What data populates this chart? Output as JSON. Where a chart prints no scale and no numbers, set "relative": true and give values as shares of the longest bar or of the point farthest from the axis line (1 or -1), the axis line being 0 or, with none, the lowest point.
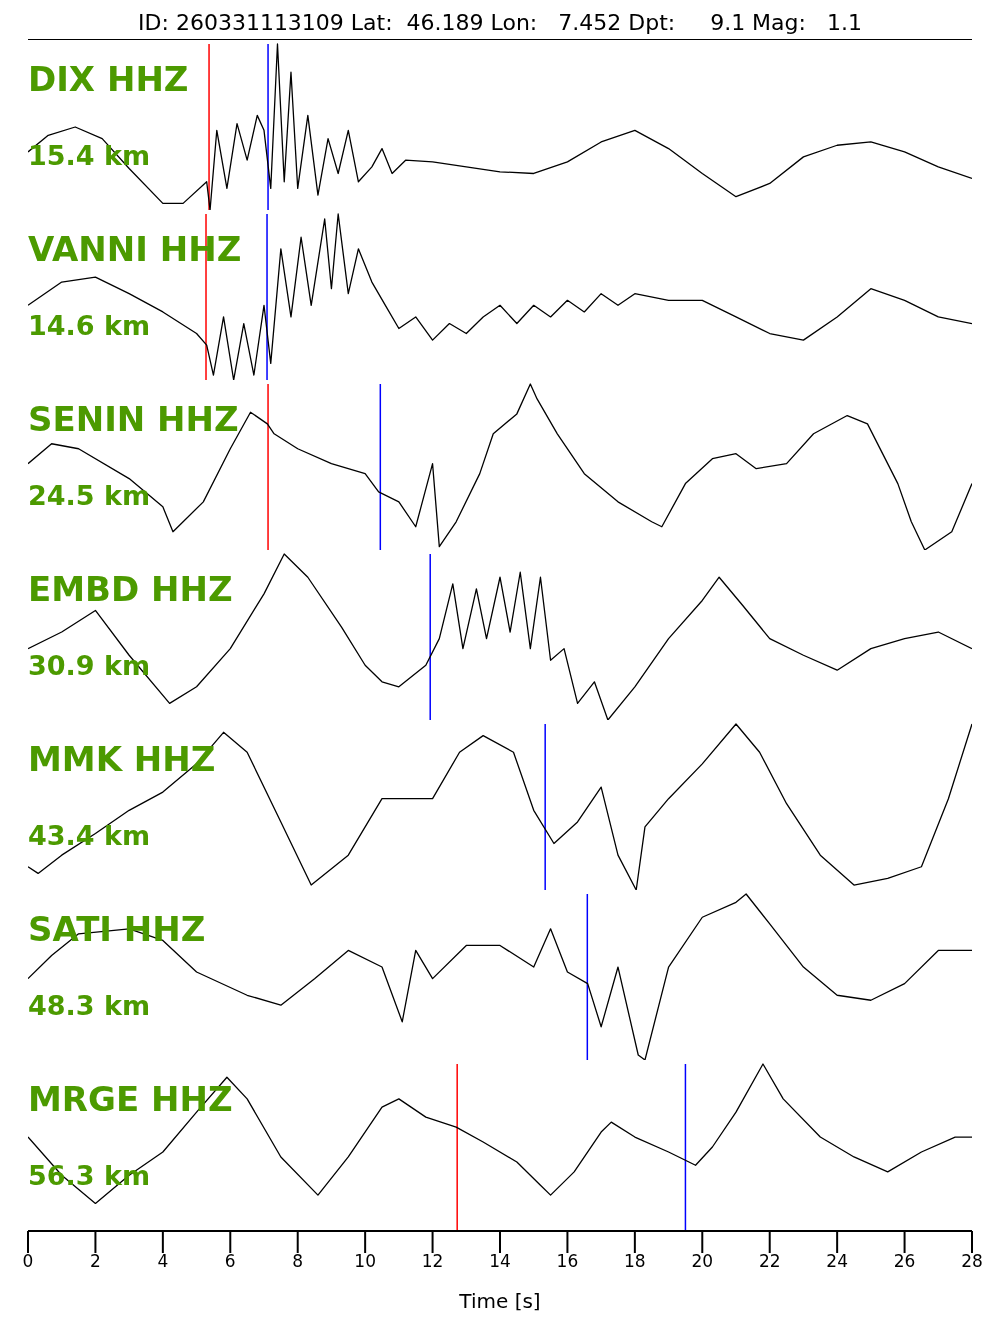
{
  "chart_data": [
    {
      "type": "line",
      "title": "ID: 260331113109 Lat:  46.189 Lon:   7.452 Dpt:     9.1 Mag:   1.1",
      "relative": true,
      "color": "#000000",
      "xlim": [
        0,
        28
      ],
      "tick_labels": false,
      "annotations": [
        "DIX HHZ",
        "15.4 km"
      ],
      "ref_lines": [
        {
          "axis": "x",
          "value": 5.37,
          "color": "#ff0000"
        },
        {
          "axis": "x",
          "value": 7.12,
          "color": "#0000ff"
        }
      ],
      "x": [
        0,
        0.6,
        1.4,
        2.2,
        3,
        4,
        4.6,
        5.3,
        5.4,
        5.6,
        5.9,
        6.2,
        6.5,
        6.8,
        7,
        7.2,
        7.4,
        7.6,
        7.8,
        8,
        8.3,
        8.6,
        8.9,
        9.2,
        9.5,
        9.8,
        10.2,
        10.5,
        10.8,
        11.2,
        12,
        13,
        14,
        15,
        16,
        17,
        18,
        19,
        20,
        21,
        22,
        23,
        24,
        25,
        26,
        27,
        28
      ],
      "values": [
        0.35,
        0.45,
        0.5,
        0.43,
        0.25,
        0.04,
        0.04,
        0.17,
        0,
        0.48,
        0.13,
        0.52,
        0.3,
        0.57,
        0.48,
        0.13,
        1,
        0.17,
        0.83,
        0.13,
        0.57,
        0.09,
        0.43,
        0.22,
        0.48,
        0.17,
        0.26,
        0.37,
        0.22,
        0.3,
        0.29,
        0.26,
        0.23,
        0.22,
        0.29,
        0.41,
        0.48,
        0.37,
        0.22,
        0.08,
        0.16,
        0.32,
        0.39,
        0.41,
        0.35,
        0.26,
        0.19
      ]
    },
    {
      "type": "line",
      "relative": true,
      "color": "#000000",
      "xlim": [
        0,
        28
      ],
      "tick_labels": false,
      "annotations": [
        "VANNI HHZ",
        "14.6 km"
      ],
      "ref_lines": [
        {
          "axis": "x",
          "value": 5.28,
          "color": "#ff0000"
        },
        {
          "axis": "x",
          "value": 7.09,
          "color": "#0000ff"
        }
      ],
      "x": [
        0,
        1,
        2,
        3,
        4,
        5,
        5.3,
        5.5,
        5.8,
        6.1,
        6.4,
        6.7,
        7,
        7.2,
        7.5,
        7.8,
        8.1,
        8.4,
        8.8,
        9,
        9.2,
        9.5,
        9.8,
        10.2,
        10.6,
        11,
        11.5,
        12,
        12.5,
        13,
        13.5,
        14,
        14.5,
        15,
        15.5,
        16,
        16.5,
        17,
        17.5,
        18,
        19,
        20,
        21,
        22,
        23,
        24,
        25,
        26,
        27,
        28
      ],
      "values": [
        0.45,
        0.59,
        0.62,
        0.52,
        0.41,
        0.28,
        0.21,
        0.03,
        0.38,
        0,
        0.34,
        0.03,
        0.45,
        0.1,
        0.79,
        0.38,
        0.86,
        0.45,
        0.97,
        0.55,
        1,
        0.52,
        0.79,
        0.59,
        0.45,
        0.31,
        0.38,
        0.24,
        0.34,
        0.28,
        0.38,
        0.45,
        0.34,
        0.45,
        0.38,
        0.48,
        0.41,
        0.52,
        0.45,
        0.52,
        0.48,
        0.48,
        0.38,
        0.28,
        0.24,
        0.38,
        0.55,
        0.48,
        0.38,
        0.34
      ]
    },
    {
      "type": "line",
      "relative": true,
      "color": "#000000",
      "xlim": [
        0,
        28
      ],
      "tick_labels": false,
      "annotations": [
        "SENIN HHZ",
        "24.5 km"
      ],
      "ref_lines": [
        {
          "axis": "x",
          "value": 7.12,
          "color": "#ff0000"
        },
        {
          "axis": "x",
          "value": 10.45,
          "color": "#0000ff"
        }
      ],
      "x": [
        0,
        0.7,
        1.5,
        3,
        4,
        4.3,
        5.2,
        6,
        6.6,
        7.1,
        7.3,
        8,
        9,
        10,
        10.4,
        11,
        11.5,
        12,
        12.2,
        12.7,
        13.4,
        13.8,
        14.5,
        14.9,
        15.1,
        15.7,
        16.5,
        17.5,
        18.5,
        18.8,
        19.5,
        20.3,
        21,
        21.6,
        22.5,
        23.3,
        24.3,
        24.9,
        25.8,
        26.2,
        26.6,
        27.4,
        28
      ],
      "values": [
        0.52,
        0.64,
        0.61,
        0.43,
        0.26,
        0.11,
        0.29,
        0.61,
        0.83,
        0.76,
        0.7,
        0.61,
        0.52,
        0.46,
        0.35,
        0.29,
        0.14,
        0.52,
        0.02,
        0.17,
        0.46,
        0.7,
        0.82,
        1,
        0.91,
        0.7,
        0.46,
        0.29,
        0.17,
        0.14,
        0.4,
        0.55,
        0.58,
        0.49,
        0.52,
        0.7,
        0.81,
        0.76,
        0.4,
        0.17,
        0,
        0.11,
        0.4
      ]
    },
    {
      "type": "line",
      "relative": true,
      "color": "#000000",
      "xlim": [
        0,
        28
      ],
      "tick_labels": false,
      "annotations": [
        "EMBD HHZ",
        "30.9 km"
      ],
      "ref_lines": [
        {
          "axis": "x",
          "value": 11.93,
          "color": "#0000ff"
        }
      ],
      "x": [
        0,
        1,
        2,
        3,
        4.2,
        5,
        6,
        7,
        7.6,
        8.3,
        9.3,
        10,
        10.5,
        11,
        11.8,
        12.2,
        12.6,
        12.9,
        13.3,
        13.6,
        14,
        14.3,
        14.6,
        14.9,
        15.2,
        15.5,
        15.9,
        16.3,
        16.8,
        17.2,
        18,
        19,
        20,
        20.5,
        21.2,
        22,
        23,
        24,
        25,
        26,
        27,
        28
      ],
      "values": [
        0.43,
        0.53,
        0.66,
        0.39,
        0.1,
        0.2,
        0.43,
        0.76,
        1,
        0.86,
        0.56,
        0.33,
        0.23,
        0.2,
        0.33,
        0.49,
        0.82,
        0.43,
        0.79,
        0.49,
        0.86,
        0.53,
        0.89,
        0.43,
        0.86,
        0.36,
        0.43,
        0.1,
        0.23,
        0,
        0.2,
        0.49,
        0.72,
        0.86,
        0.69,
        0.49,
        0.39,
        0.3,
        0.43,
        0.49,
        0.53,
        0.43
      ]
    },
    {
      "type": "line",
      "relative": true,
      "color": "#000000",
      "xlim": [
        0,
        28
      ],
      "tick_labels": false,
      "annotations": [
        "MMK HHZ",
        "43.4 km"
      ],
      "ref_lines": [
        {
          "axis": "x",
          "value": 15.34,
          "color": "#0000ff"
        }
      ],
      "x": [
        0,
        0.3,
        1,
        2,
        3,
        4,
        5,
        5.8,
        6.5,
        7.5,
        8.4,
        9.5,
        10.5,
        11.4,
        12,
        12.8,
        13.5,
        14.4,
        15,
        15.6,
        16.3,
        17,
        17.5,
        18.04,
        18.3,
        19,
        20,
        21,
        21.7,
        22.5,
        23.5,
        24.5,
        25.5,
        26.5,
        27.3,
        28
      ],
      "values": [
        0.14,
        0.1,
        0.21,
        0.34,
        0.48,
        0.59,
        0.76,
        0.95,
        0.83,
        0.41,
        0.03,
        0.21,
        0.55,
        0.55,
        0.55,
        0.83,
        0.93,
        0.83,
        0.48,
        0.28,
        0.41,
        0.62,
        0.21,
        0,
        0.38,
        0.55,
        0.76,
        1,
        0.83,
        0.52,
        0.21,
        0.03,
        0.07,
        0.14,
        0.55,
        1
      ]
    },
    {
      "type": "line",
      "relative": true,
      "color": "#000000",
      "xlim": [
        0,
        28
      ],
      "tick_labels": false,
      "annotations": [
        "SATI HHZ",
        "48.3 km"
      ],
      "ref_lines": [
        {
          "axis": "x",
          "value": 16.59,
          "color": "#0000ff"
        }
      ],
      "x": [
        0,
        0.7,
        1.5,
        3,
        4,
        5,
        6.5,
        7.5,
        8.5,
        9.5,
        10.5,
        11.1,
        11.5,
        12,
        13,
        14,
        15,
        15.5,
        16,
        16.6,
        17,
        17.5,
        18.1,
        18.3,
        19,
        20,
        21,
        21.3,
        22,
        23,
        24,
        25,
        26,
        27,
        28
      ],
      "values": [
        0.49,
        0.63,
        0.76,
        0.79,
        0.72,
        0.53,
        0.39,
        0.33,
        0.49,
        0.66,
        0.56,
        0.23,
        0.66,
        0.49,
        0.69,
        0.69,
        0.56,
        0.79,
        0.53,
        0.46,
        0.2,
        0.56,
        0.03,
        0,
        0.56,
        0.86,
        0.95,
        1,
        0.82,
        0.56,
        0.39,
        0.36,
        0.46,
        0.66,
        0.66
      ]
    },
    {
      "type": "line",
      "relative": true,
      "color": "#000000",
      "xlim": [
        0,
        28
      ],
      "tick_labels": "x",
      "xlabel": "Time [s]",
      "annotations": [
        "MRGE HHZ",
        "56.3 km"
      ],
      "ref_lines": [
        {
          "axis": "x",
          "value": 12.73,
          "color": "#ff0000"
        },
        {
          "axis": "x",
          "value": 19.5,
          "color": "#0000ff"
        }
      ],
      "x": [
        0,
        1,
        2,
        3,
        4,
        5,
        5.9,
        6.5,
        7.5,
        8.6,
        9.5,
        10.5,
        11,
        11.8,
        12.7,
        13.5,
        14.5,
        15.2,
        15.5,
        16.2,
        17,
        17.3,
        18,
        19,
        19.8,
        20.3,
        21,
        21.8,
        22.4,
        23.5,
        24.5,
        25.5,
        26.5,
        27.5,
        28
      ],
      "values": [
        0.56,
        0.33,
        0.16,
        0.33,
        0.47,
        0.71,
        0.92,
        0.79,
        0.44,
        0.21,
        0.44,
        0.74,
        0.79,
        0.68,
        0.62,
        0.53,
        0.41,
        0.27,
        0.21,
        0.35,
        0.59,
        0.65,
        0.56,
        0.47,
        0.39,
        0.5,
        0.71,
        1,
        0.79,
        0.56,
        0.44,
        0.35,
        0.47,
        0.56,
        0.56
      ],
      "xticks": [
        0,
        2,
        4,
        6,
        8,
        10,
        12,
        14,
        16,
        18,
        20,
        22,
        24,
        26,
        28
      ]
    }
  ]
}
